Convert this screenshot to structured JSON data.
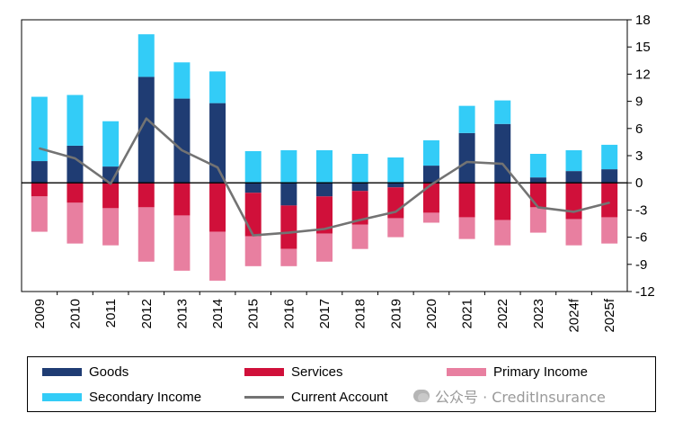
{
  "chart_data": {
    "type": "bar",
    "categories": [
      "2009",
      "2010",
      "2011",
      "2012",
      "2013",
      "2014",
      "2015",
      "2016",
      "2017",
      "2018",
      "2019",
      "2020",
      "2021",
      "2022",
      "2023",
      "2024f",
      "2025f"
    ],
    "series": [
      {
        "name": "Goods",
        "color": "#1f3c73",
        "values": [
          2.4,
          4.1,
          1.8,
          11.7,
          9.3,
          8.8,
          -1.1,
          -2.5,
          -1.5,
          -0.9,
          -0.5,
          1.9,
          5.5,
          6.5,
          0.6,
          1.3,
          1.5
        ]
      },
      {
        "name": "Services",
        "color": "#d0103a",
        "values": [
          -1.5,
          -2.2,
          -2.8,
          -2.7,
          -3.6,
          -5.4,
          -4.8,
          -4.8,
          -4.1,
          -3.7,
          -3.4,
          -3.3,
          -3.8,
          -4.1,
          -2.7,
          -4.0,
          -3.8
        ]
      },
      {
        "name": "Primary Income",
        "color": "#e87fa0",
        "values": [
          -3.9,
          -4.5,
          -4.1,
          -6.0,
          -6.1,
          -5.4,
          -3.3,
          -1.9,
          -3.1,
          -2.7,
          -2.1,
          -1.1,
          -2.4,
          -2.8,
          -2.8,
          -2.9,
          -2.9
        ]
      },
      {
        "name": "Secondary Income",
        "color": "#33ccf7",
        "values": [
          7.1,
          5.6,
          5.0,
          4.7,
          4.0,
          3.5,
          3.5,
          3.6,
          3.6,
          3.2,
          2.8,
          2.8,
          3.0,
          2.6,
          2.6,
          2.3,
          2.7
        ]
      },
      {
        "name": "Current Account",
        "color": "#737373",
        "type": "line",
        "values": [
          3.8,
          2.7,
          -0.1,
          7.1,
          3.6,
          1.7,
          -5.8,
          -5.5,
          -5.1,
          -4.1,
          -3.2,
          -0.2,
          2.3,
          2.1,
          -2.7,
          -3.2,
          -2.2
        ]
      }
    ],
    "ylim": [
      -12,
      18
    ],
    "yticks": [
      18,
      15,
      12,
      9,
      6,
      3,
      0,
      -3,
      -6,
      -9,
      -12
    ],
    "y_axis_side": "right",
    "grid": false,
    "legend_position": "bottom"
  },
  "watermark": {
    "text": "公众号 · CreditInsurance"
  }
}
